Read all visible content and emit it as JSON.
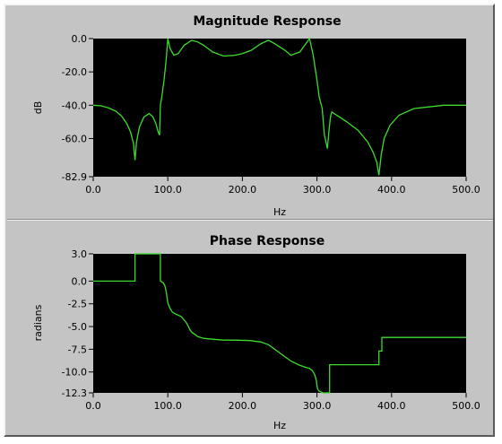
{
  "chart_data": [
    {
      "type": "line",
      "title": "Magnitude Response",
      "xlabel": "Hz",
      "ylabel": "dB",
      "xlim": [
        0,
        500
      ],
      "ylim": [
        -82.9,
        0
      ],
      "x_tick_labels": [
        "0.0",
        "100.0",
        "200.0",
        "300.0",
        "400.0",
        "500.0"
      ],
      "y_tick_labels": [
        "0.0",
        "-20.0",
        "-40.0",
        "-60.0",
        "-82.9"
      ],
      "grid": false,
      "background": "#000000",
      "line_color": "#3cdc2c",
      "series": [
        {
          "x": [
            0,
            10,
            20,
            30,
            38,
            45,
            50,
            54,
            56,
            58,
            62,
            68,
            75,
            80,
            84,
            87,
            89,
            90,
            92,
            95,
            98,
            100,
            103,
            108,
            114,
            122,
            132,
            140,
            148,
            160,
            175,
            190,
            200,
            212,
            225,
            235,
            243,
            250,
            257,
            265,
            277,
            290,
            295,
            300,
            303,
            307,
            310,
            312,
            314,
            316,
            318,
            320,
            323,
            330,
            340,
            355,
            368,
            375,
            380,
            383,
            386,
            390,
            398,
            410,
            430,
            450,
            470,
            490,
            500
          ],
          "y": [
            -40,
            -40.3,
            -41.5,
            -43.5,
            -46.5,
            -51,
            -56,
            -63,
            -73,
            -62,
            -53,
            -47,
            -45,
            -47,
            -51,
            -56,
            -58,
            -40,
            -35,
            -25,
            -12,
            0,
            -6,
            -10,
            -9,
            -4,
            -1,
            -2,
            -4,
            -8,
            -10.5,
            -10,
            -9,
            -7,
            -3,
            -1,
            -3,
            -5,
            -7,
            -10,
            -8,
            0,
            -10,
            -25,
            -35,
            -42,
            -58,
            -62,
            -66,
            -56,
            -47,
            -44,
            -45,
            -47,
            -50,
            -55,
            -62,
            -68,
            -74,
            -82,
            -70,
            -60,
            -52,
            -46,
            -42,
            -41,
            -40,
            -40,
            -40
          ]
        }
      ]
    },
    {
      "type": "line",
      "title": "Phase Response",
      "xlabel": "Hz",
      "ylabel": "radians",
      "xlim": [
        0,
        500
      ],
      "ylim": [
        -12.3,
        3.0
      ],
      "x_tick_labels": [
        "0.0",
        "100.0",
        "200.0",
        "300.0",
        "400.0",
        "500.0"
      ],
      "y_tick_labels": [
        "3.0",
        "0.0",
        "-2.5",
        "-5.0",
        "-7.5",
        "-10.0",
        "-12.3"
      ],
      "grid": false,
      "background": "#000000",
      "line_color": "#3cdc2c",
      "series": [
        {
          "x": [
            0,
            56,
            56,
            90,
            90,
            94,
            96,
            98,
            100,
            103,
            106,
            110,
            118,
            125,
            130,
            133,
            137,
            140,
            148,
            160,
            175,
            190,
            210,
            225,
            235,
            245,
            255,
            265,
            275,
            285,
            290,
            293,
            295,
            297,
            299,
            300,
            301,
            303,
            308,
            313,
            317,
            317,
            383,
            383,
            387,
            387,
            500
          ],
          "y": [
            0,
            0,
            3.0,
            3.0,
            0,
            -0.2,
            -0.5,
            -1.2,
            -2.4,
            -3.0,
            -3.4,
            -3.6,
            -3.9,
            -4.6,
            -5.4,
            -5.7,
            -5.9,
            -6.1,
            -6.3,
            -6.4,
            -6.5,
            -6.5,
            -6.55,
            -6.7,
            -7.0,
            -7.6,
            -8.2,
            -8.8,
            -9.2,
            -9.5,
            -9.6,
            -9.8,
            -10.0,
            -10.3,
            -10.9,
            -11.5,
            -11.9,
            -12.1,
            -12.3,
            -12.3,
            -12.3,
            -9.2,
            -9.2,
            -7.7,
            -7.7,
            -6.2,
            -6.2
          ]
        }
      ]
    }
  ]
}
